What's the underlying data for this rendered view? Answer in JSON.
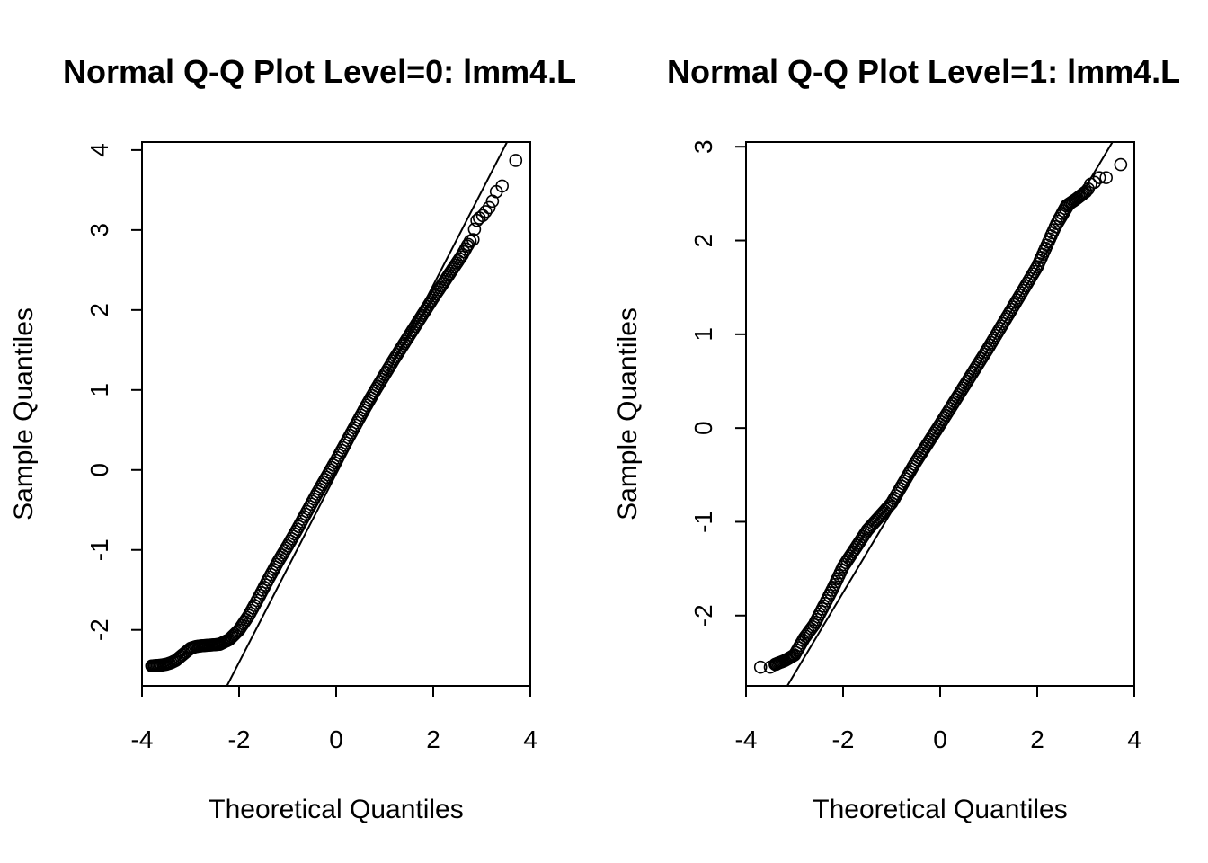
{
  "chart_data": [
    {
      "type": "scatter",
      "title": "Normal Q-Q Plot Level=0: lmm4.L",
      "xlabel": "Theoretical Quantiles",
      "ylabel": "Sample Quantiles",
      "xlim": [
        -4,
        4
      ],
      "ylim": [
        -2.7,
        4.1
      ],
      "xticks": [
        -4,
        -2,
        0,
        2,
        4
      ],
      "yticks": [
        -2,
        -1,
        0,
        1,
        2,
        3,
        4
      ],
      "grid": false,
      "reference_line": {
        "x": [
          -2.25,
          3.52
        ],
        "y": [
          -2.7,
          4.1
        ]
      },
      "curve": {
        "x": [
          -3.8,
          -3.6,
          -3.5,
          -3.4,
          -3.3,
          -3.2,
          -3.1,
          -3.0,
          -2.9,
          -2.8,
          -2.6,
          -2.4,
          -2.2,
          -2.0,
          -1.8,
          -1.6,
          -1.4,
          -1.2,
          -1.0,
          -0.8,
          -0.6,
          -0.4,
          -0.2,
          0.0,
          0.2,
          0.4,
          0.6,
          0.8,
          1.0,
          1.2,
          1.4,
          1.6,
          1.8,
          2.0,
          2.2,
          2.4,
          2.6,
          2.7
        ],
        "y": [
          -2.45,
          -2.44,
          -2.43,
          -2.41,
          -2.38,
          -2.33,
          -2.28,
          -2.23,
          -2.21,
          -2.2,
          -2.19,
          -2.18,
          -2.12,
          -2.0,
          -1.82,
          -1.6,
          -1.37,
          -1.15,
          -0.95,
          -0.74,
          -0.52,
          -0.3,
          -0.09,
          0.12,
          0.34,
          0.56,
          0.78,
          0.99,
          1.19,
          1.39,
          1.58,
          1.77,
          1.96,
          2.15,
          2.33,
          2.51,
          2.69,
          2.8
        ]
      },
      "tail_points": [
        {
          "x": 2.72,
          "y": 2.82
        },
        {
          "x": 2.76,
          "y": 2.86
        },
        {
          "x": 2.82,
          "y": 2.88
        },
        {
          "x": 2.85,
          "y": 3.01
        },
        {
          "x": 2.9,
          "y": 3.12
        },
        {
          "x": 2.95,
          "y": 3.15
        },
        {
          "x": 3.02,
          "y": 3.18
        },
        {
          "x": 3.08,
          "y": 3.23
        },
        {
          "x": 3.15,
          "y": 3.28
        },
        {
          "x": 3.22,
          "y": 3.36
        },
        {
          "x": 3.3,
          "y": 3.48
        },
        {
          "x": 3.42,
          "y": 3.55
        },
        {
          "x": 3.7,
          "y": 3.87
        }
      ]
    },
    {
      "type": "scatter",
      "title": "Normal Q-Q Plot Level=1: lmm4.L",
      "xlabel": "Theoretical Quantiles",
      "ylabel": "Sample Quantiles",
      "xlim": [
        -4,
        4
      ],
      "ylim": [
        -2.75,
        3.05
      ],
      "xticks": [
        -4,
        -2,
        0,
        2,
        4
      ],
      "yticks": [
        -2,
        -1,
        0,
        1,
        2,
        3
      ],
      "grid": false,
      "reference_line": {
        "x": [
          -3.15,
          3.55
        ],
        "y": [
          -2.75,
          3.05
        ]
      },
      "curve": {
        "x": [
          -3.4,
          -3.2,
          -3.0,
          -2.8,
          -2.6,
          -2.4,
          -2.2,
          -2.0,
          -1.5,
          -1.0,
          -0.5,
          0.0,
          0.5,
          1.0,
          1.5,
          2.0,
          2.2,
          2.4,
          2.6,
          2.8,
          3.0
        ],
        "y": [
          -2.52,
          -2.48,
          -2.42,
          -2.24,
          -2.1,
          -1.9,
          -1.7,
          -1.48,
          -1.09,
          -0.8,
          -0.36,
          0.04,
          0.45,
          0.86,
          1.29,
          1.72,
          1.95,
          2.18,
          2.37,
          2.44,
          2.52
        ]
      },
      "tail_points": [
        {
          "x": -3.7,
          "y": -2.55
        },
        {
          "x": -3.5,
          "y": -2.55
        },
        {
          "x": -3.38,
          "y": -2.52
        },
        {
          "x": 3.05,
          "y": 2.55
        },
        {
          "x": 3.1,
          "y": 2.6
        },
        {
          "x": 3.18,
          "y": 2.62
        },
        {
          "x": 3.28,
          "y": 2.67
        },
        {
          "x": 3.42,
          "y": 2.67
        },
        {
          "x": 3.72,
          "y": 2.81
        }
      ]
    }
  ]
}
